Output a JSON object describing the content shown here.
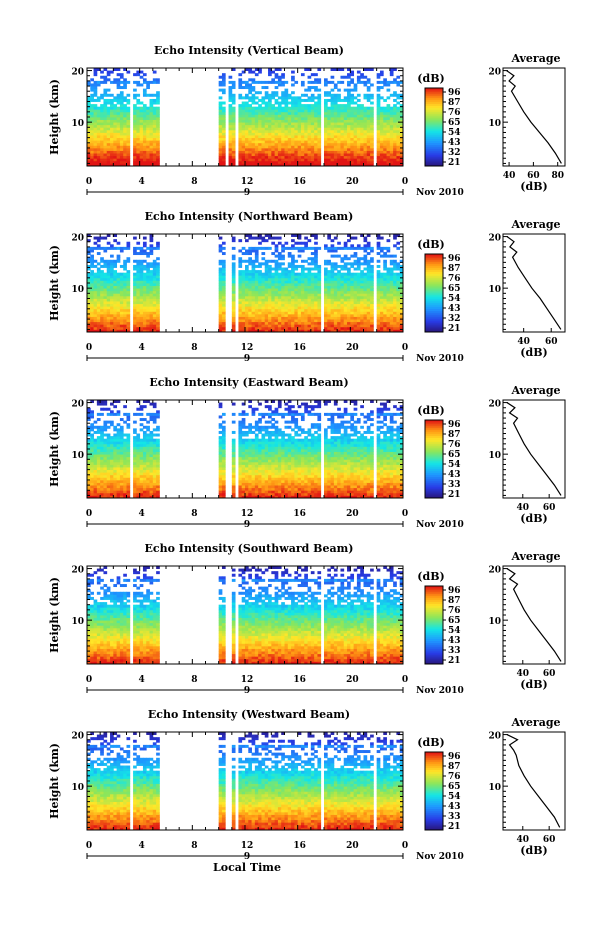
{
  "chart_data": [
    {
      "type": "heatmap",
      "title": "Echo Intensity (Vertical Beam)",
      "ylabel": "Height (km)",
      "x_ticks": [
        "0",
        "4",
        "8",
        "12",
        "16",
        "20",
        "0"
      ],
      "y_ticks": [
        "20",
        "10"
      ],
      "xlim": [
        0,
        24
      ],
      "ylim": [
        1.5,
        20.5
      ],
      "date_marker": "9",
      "date_label": "Nov 2010",
      "colorbar": {
        "title": "(dB)",
        "ticks": [
          "96",
          "87",
          "76",
          "65",
          "54",
          "43",
          "32",
          "21"
        ]
      },
      "data_gaps": [
        [
          3.2,
          3.6
        ],
        [
          5.6,
          10.0
        ],
        [
          10.5,
          10.7
        ],
        [
          11.2,
          11.5
        ],
        [
          17.8,
          18.0
        ],
        [
          21.7,
          22.0
        ]
      ],
      "profile": {
        "title": "Average",
        "xlabel": "(dB)",
        "x_ticks": [
          "40",
          "60",
          "80"
        ],
        "xlim": [
          35,
          86
        ],
        "heights": [
          2,
          4,
          6,
          8,
          10,
          12,
          14,
          16,
          17,
          18,
          19,
          20
        ],
        "values": [
          83,
          78,
          72,
          65,
          58,
          52,
          47,
          42,
          45,
          40,
          44,
          38
        ]
      }
    },
    {
      "type": "heatmap",
      "title": "Echo Intensity (Northward Beam)",
      "ylabel": "Height (km)",
      "x_ticks": [
        "0",
        "4",
        "8",
        "12",
        "16",
        "20",
        "0"
      ],
      "y_ticks": [
        "20",
        "10"
      ],
      "xlim": [
        0,
        24
      ],
      "ylim": [
        1.5,
        20.5
      ],
      "date_marker": "9",
      "date_label": "Nov 2010",
      "colorbar": {
        "title": "(dB)",
        "ticks": [
          "96",
          "87",
          "76",
          "65",
          "54",
          "43",
          "32",
          "21"
        ]
      },
      "data_gaps": [
        [
          3.2,
          3.6
        ],
        [
          5.6,
          10.0
        ],
        [
          10.6,
          10.9
        ],
        [
          11.3,
          11.6
        ],
        [
          17.8,
          18.0
        ],
        [
          21.7,
          22.0
        ]
      ],
      "profile": {
        "title": "Average",
        "xlabel": "(dB)",
        "x_ticks": [
          "40",
          "60"
        ],
        "xlim": [
          25,
          70
        ],
        "heights": [
          2,
          4,
          6,
          8,
          10,
          12,
          14,
          16,
          17,
          18,
          19,
          20
        ],
        "values": [
          67,
          62,
          57,
          52,
          46,
          41,
          36,
          32,
          35,
          30,
          33,
          28
        ]
      }
    },
    {
      "type": "heatmap",
      "title": "Echo Intensity (Eastward Beam)",
      "ylabel": "Height (km)",
      "x_ticks": [
        "0",
        "4",
        "8",
        "12",
        "16",
        "20",
        "0"
      ],
      "y_ticks": [
        "20",
        "10"
      ],
      "xlim": [
        0,
        24
      ],
      "ylim": [
        1.5,
        20.5
      ],
      "date_marker": "9",
      "date_label": "Nov 2010",
      "colorbar": {
        "title": "(dB)",
        "ticks": [
          "96",
          "87",
          "76",
          "65",
          "54",
          "43",
          "33",
          "21"
        ]
      },
      "data_gaps": [
        [
          3.2,
          3.6
        ],
        [
          5.6,
          10.0
        ],
        [
          10.6,
          10.9
        ],
        [
          11.3,
          11.6
        ],
        [
          17.8,
          18.0
        ],
        [
          21.7,
          22.0
        ]
      ],
      "profile": {
        "title": "Average",
        "xlabel": "(dB)",
        "x_ticks": [
          "40",
          "60"
        ],
        "xlim": [
          25,
          72
        ],
        "heights": [
          2,
          4,
          6,
          8,
          10,
          12,
          14,
          16,
          17,
          18,
          19,
          20
        ],
        "values": [
          69,
          64,
          58,
          52,
          46,
          41,
          37,
          33,
          36,
          30,
          34,
          28
        ]
      }
    },
    {
      "type": "heatmap",
      "title": "Echo Intensity (Southward Beam)",
      "ylabel": "Height (km)",
      "x_ticks": [
        "0",
        "4",
        "8",
        "12",
        "16",
        "20",
        "0"
      ],
      "y_ticks": [
        "20",
        "10"
      ],
      "xlim": [
        0,
        24
      ],
      "ylim": [
        1.5,
        20.5
      ],
      "date_marker": "9",
      "date_label": "Nov 2010",
      "colorbar": {
        "title": "(dB)",
        "ticks": [
          "96",
          "87",
          "76",
          "65",
          "54",
          "43",
          "33",
          "21"
        ]
      },
      "data_gaps": [
        [
          3.2,
          3.6
        ],
        [
          5.6,
          10.0
        ],
        [
          10.6,
          10.9
        ],
        [
          11.3,
          11.6
        ],
        [
          17.8,
          18.0
        ],
        [
          21.7,
          22.0
        ]
      ],
      "profile": {
        "title": "Average",
        "xlabel": "(dB)",
        "x_ticks": [
          "40",
          "60"
        ],
        "xlim": [
          25,
          72
        ],
        "heights": [
          2,
          4,
          6,
          8,
          10,
          12,
          14,
          16,
          17,
          18,
          19,
          20
        ],
        "values": [
          69,
          64,
          58,
          52,
          46,
          41,
          37,
          33,
          36,
          30,
          34,
          28
        ]
      }
    },
    {
      "type": "heatmap",
      "title": "Echo Intensity (Westward Beam)",
      "ylabel": "Height (km)",
      "xlabel": "Local Time",
      "x_ticks": [
        "0",
        "4",
        "8",
        "12",
        "16",
        "20",
        "0"
      ],
      "y_ticks": [
        "20",
        "10"
      ],
      "xlim": [
        0,
        24
      ],
      "ylim": [
        1.5,
        20.5
      ],
      "date_marker": "9",
      "date_label": "Nov 2010",
      "colorbar": {
        "title": "(dB)",
        "ticks": [
          "96",
          "87",
          "76",
          "65",
          "54",
          "43",
          "33",
          "21"
        ]
      },
      "data_gaps": [
        [
          3.2,
          3.6
        ],
        [
          5.6,
          10.0
        ],
        [
          10.6,
          10.9
        ],
        [
          11.3,
          11.6
        ],
        [
          17.8,
          18.0
        ],
        [
          21.7,
          22.0
        ]
      ],
      "profile": {
        "title": "Average",
        "xlabel": "(dB)",
        "x_ticks": [
          "40",
          "60"
        ],
        "xlim": [
          25,
          72
        ],
        "heights": [
          2,
          4,
          6,
          8,
          10,
          12,
          14,
          16,
          17,
          18,
          19,
          20
        ],
        "values": [
          68,
          64,
          58,
          52,
          46,
          41,
          37,
          35,
          33,
          30,
          36,
          28
        ]
      }
    }
  ]
}
